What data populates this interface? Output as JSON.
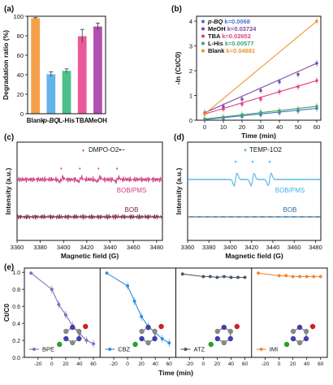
{
  "chart_data": [
    {
      "panel": "(a)",
      "type": "bar",
      "ylabel": "Degradation ratio (%)",
      "ylim": [
        0,
        100
      ],
      "yticks": [
        0,
        20,
        40,
        60,
        80,
        100
      ],
      "categories": [
        "Blank",
        "p-BQ",
        "L-His",
        "TBA",
        "MeOH"
      ],
      "values": [
        98,
        40.5,
        44,
        79.5,
        89.5
      ],
      "errors": [
        0.6,
        2.5,
        2.0,
        7.0,
        3.5
      ],
      "colors": [
        "#f5a04a",
        "#64b4ea",
        "#4cc08a",
        "#ea5a98",
        "#b050b0"
      ]
    },
    {
      "panel": "(b)",
      "type": "scatter",
      "xlabel": "Time (min)",
      "ylabel": "-ln (Ct/C0)",
      "xlim": [
        0,
        60
      ],
      "ylim": [
        0,
        4.2
      ],
      "xticks": [
        0,
        10,
        20,
        30,
        40,
        50,
        60
      ],
      "series": [
        {
          "name": "p-BQ",
          "k_label": "k=0.0068",
          "color": "#3f74c8",
          "x": [
            0,
            10,
            20,
            30,
            40,
            50,
            60
          ],
          "y": [
            0.03,
            0.08,
            0.15,
            0.22,
            0.3,
            0.37,
            0.48
          ]
        },
        {
          "name": "MeOH",
          "k_label": "k=0.03724",
          "color": "#7a46a8",
          "x": [
            0,
            10,
            20,
            30,
            40,
            50,
            60
          ],
          "y": [
            0.3,
            0.55,
            0.85,
            1.2,
            1.55,
            1.85,
            2.3
          ]
        },
        {
          "name": "TBA",
          "k_label": "k=0.02652",
          "color": "#e0407f",
          "x": [
            0,
            10,
            20,
            30,
            40,
            50,
            60
          ],
          "y": [
            0.25,
            0.45,
            0.65,
            0.85,
            1.15,
            1.35,
            1.6
          ]
        },
        {
          "name": "L-His",
          "k_label": "k=0.00577",
          "color": "#3fa36b",
          "x": [
            0,
            10,
            20,
            30,
            40,
            50,
            60
          ],
          "y": [
            0.05,
            0.12,
            0.22,
            0.32,
            0.38,
            0.45,
            0.56
          ]
        },
        {
          "name": "Blank",
          "k_label": "k=0.04881",
          "color": "#f0922d",
          "x": [
            0,
            60
          ],
          "y": [
            0.25,
            4.0
          ]
        }
      ]
    },
    {
      "panel": "(c)",
      "type": "line",
      "xlabel": "Magnetic field (G)",
      "ylabel": "Intensity (a.u.)",
      "xlim": [
        3360,
        3485
      ],
      "xticks": [
        3360,
        3380,
        3400,
        3420,
        3440,
        3460,
        3480
      ],
      "legend": "DMPO-O2•−",
      "series": [
        {
          "name": "BOB/PMS",
          "color": "#d0407c"
        },
        {
          "name": "BOB",
          "color": "#7a2a4a"
        }
      ],
      "peaks_x": [
        3398,
        3414,
        3430,
        3446
      ]
    },
    {
      "panel": "(d)",
      "type": "line",
      "xlabel": "Magnetic field (G)",
      "ylabel": "Intensity (a.u.)",
      "xlim": [
        3360,
        3485
      ],
      "xticks": [
        3360,
        3380,
        3400,
        3420,
        3440,
        3460,
        3480
      ],
      "legend": "TEMP-1O2",
      "series": [
        {
          "name": "BOB/PMS",
          "color": "#3fb0e8"
        },
        {
          "name": "BOB",
          "color": "#2a6ea0"
        }
      ],
      "peaks_x": [
        3405,
        3421,
        3437
      ]
    },
    {
      "panel": "(e)",
      "type": "line",
      "xlabel": "Time (min)",
      "ylabel": "Ct/C0",
      "ylim": [
        0,
        1.05
      ],
      "yticks": [
        0.0,
        0.2,
        0.4,
        0.6,
        0.8,
        1.0
      ],
      "xticks": [
        -20,
        0,
        20,
        40,
        60
      ],
      "series": [
        {
          "name": "BPE",
          "color": "#8070c0",
          "x": [
            -30,
            0,
            10,
            20,
            30,
            40,
            50,
            60
          ],
          "y": [
            0.99,
            0.8,
            0.62,
            0.5,
            0.37,
            0.28,
            0.2,
            0.16
          ]
        },
        {
          "name": "CBZ",
          "color": "#3a8fd8",
          "x": [
            -30,
            0,
            10,
            20,
            30,
            40,
            50,
            60
          ],
          "y": [
            0.99,
            0.84,
            0.66,
            0.48,
            0.36,
            0.29,
            0.22,
            0.17
          ]
        },
        {
          "name": "ATZ",
          "color": "#4a5a6a",
          "x": [
            -30,
            0,
            10,
            20,
            30,
            40,
            50,
            60
          ],
          "y": [
            0.98,
            0.95,
            0.95,
            0.94,
            0.95,
            0.94,
            0.94,
            0.94
          ]
        },
        {
          "name": "IMI",
          "color": "#f08a3a",
          "x": [
            -30,
            0,
            10,
            20,
            30,
            40,
            50,
            60
          ],
          "y": [
            0.99,
            0.96,
            0.96,
            0.95,
            0.95,
            0.95,
            0.95,
            0.95
          ]
        }
      ]
    }
  ]
}
